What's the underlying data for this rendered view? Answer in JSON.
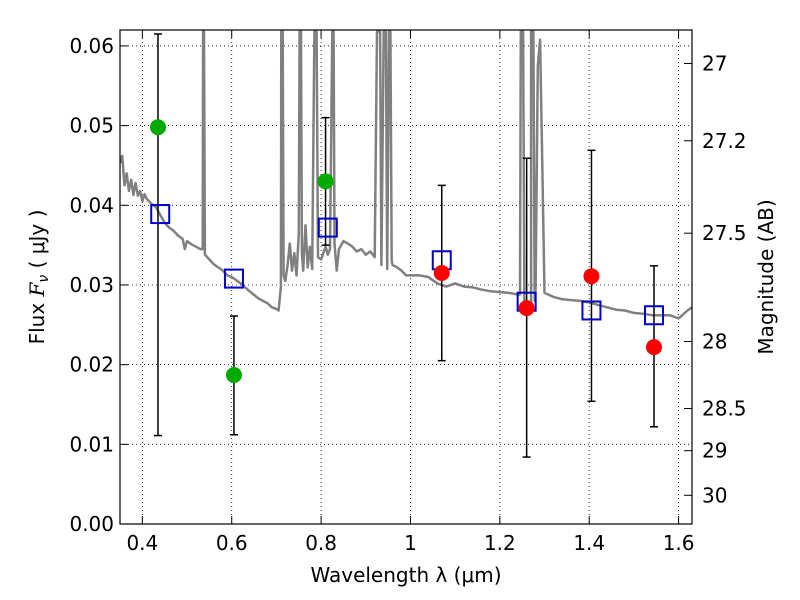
{
  "chart_data": {
    "type": "scatter",
    "xlabel": "Wavelength  λ (μm)",
    "ylabel_parts": {
      "prefix": "Flux  ",
      "var": "F",
      "sub": "ν",
      "unit": "  ( μJy )"
    },
    "y2label": "Magnitude (AB)",
    "xlim": [
      0.35,
      1.63
    ],
    "ylim": [
      0.0,
      0.062
    ],
    "grid": true,
    "x_ticks": [
      0.4,
      0.6,
      0.8,
      1.0,
      1.2,
      1.4,
      1.6
    ],
    "x_tick_labels": [
      "0.4",
      "0.6",
      "0.8",
      "1",
      "1.2",
      "1.4",
      "1.6"
    ],
    "y_ticks": [
      0.0,
      0.01,
      0.02,
      0.03,
      0.04,
      0.05,
      0.06
    ],
    "y_tick_labels": [
      "0.00",
      "0.01",
      "0.02",
      "0.03",
      "0.04",
      "0.05",
      "0.06"
    ],
    "y2_ticks": [
      {
        "label": "27",
        "flux": 0.0578
      },
      {
        "label": "27.2",
        "flux": 0.0481
      },
      {
        "label": "27.5",
        "flux": 0.0365
      },
      {
        "label": "28",
        "flux": 0.0229
      },
      {
        "label": "28.5",
        "flux": 0.0145
      },
      {
        "label": "29",
        "flux": 0.0092
      },
      {
        "label": "30",
        "flux": 0.0036
      }
    ],
    "series": [
      {
        "name": "model spectrum",
        "kind": "line",
        "color": "#808080",
        "points": [
          [
            0.35,
            0.0453
          ],
          [
            0.355,
            0.0462
          ],
          [
            0.36,
            0.0425
          ],
          [
            0.365,
            0.044
          ],
          [
            0.37,
            0.0418
          ],
          [
            0.375,
            0.0432
          ],
          [
            0.38,
            0.0413
          ],
          [
            0.385,
            0.0428
          ],
          [
            0.39,
            0.0412
          ],
          [
            0.395,
            0.0418
          ],
          [
            0.4,
            0.0405
          ],
          [
            0.405,
            0.0414
          ],
          [
            0.41,
            0.0408
          ],
          [
            0.42,
            0.0402
          ],
          [
            0.43,
            0.0398
          ],
          [
            0.44,
            0.0388
          ],
          [
            0.45,
            0.0378
          ],
          [
            0.46,
            0.0372
          ],
          [
            0.47,
            0.0368
          ],
          [
            0.48,
            0.0362
          ],
          [
            0.49,
            0.0358
          ],
          [
            0.495,
            0.0345
          ],
          [
            0.5,
            0.0355
          ],
          [
            0.51,
            0.0351
          ],
          [
            0.52,
            0.0348
          ],
          [
            0.53,
            0.0345
          ],
          [
            0.535,
            0.0345
          ],
          [
            0.536,
            0.0618
          ],
          [
            0.538,
            0.0618
          ],
          [
            0.54,
            0.0338
          ],
          [
            0.55,
            0.0332
          ],
          [
            0.56,
            0.0326
          ],
          [
            0.57,
            0.0322
          ],
          [
            0.58,
            0.0318
          ],
          [
            0.59,
            0.0312
          ],
          [
            0.6,
            0.031
          ],
          [
            0.62,
            0.0302
          ],
          [
            0.64,
            0.0292
          ],
          [
            0.66,
            0.0283
          ],
          [
            0.68,
            0.0277
          ],
          [
            0.69,
            0.0272
          ],
          [
            0.7,
            0.027
          ],
          [
            0.705,
            0.0268
          ],
          [
            0.71,
            0.0298
          ],
          [
            0.711,
            0.0618
          ],
          [
            0.714,
            0.0618
          ],
          [
            0.716,
            0.0312
          ],
          [
            0.72,
            0.0305
          ],
          [
            0.725,
            0.0325
          ],
          [
            0.73,
            0.0352
          ],
          [
            0.735,
            0.0318
          ],
          [
            0.74,
            0.034
          ],
          [
            0.745,
            0.0312
          ],
          [
            0.75,
            0.0365
          ],
          [
            0.752,
            0.0618
          ],
          [
            0.755,
            0.0618
          ],
          [
            0.757,
            0.034
          ],
          [
            0.76,
            0.0318
          ],
          [
            0.765,
            0.0375
          ],
          [
            0.77,
            0.0322
          ],
          [
            0.775,
            0.0348
          ],
          [
            0.78,
            0.032
          ],
          [
            0.785,
            0.0618
          ],
          [
            0.79,
            0.0618
          ],
          [
            0.793,
            0.0335
          ],
          [
            0.8,
            0.0332
          ],
          [
            0.81,
            0.0348
          ],
          [
            0.815,
            0.0338
          ],
          [
            0.82,
            0.0345
          ],
          [
            0.825,
            0.0618
          ],
          [
            0.828,
            0.0618
          ],
          [
            0.83,
            0.0352
          ],
          [
            0.835,
            0.0318
          ],
          [
            0.84,
            0.0345
          ],
          [
            0.85,
            0.0355
          ],
          [
            0.86,
            0.0352
          ],
          [
            0.87,
            0.0348
          ],
          [
            0.88,
            0.0342
          ],
          [
            0.89,
            0.0345
          ],
          [
            0.9,
            0.0338
          ],
          [
            0.91,
            0.0342
          ],
          [
            0.92,
            0.0335
          ],
          [
            0.925,
            0.0618
          ],
          [
            0.928,
            0.0618
          ],
          [
            0.932,
            0.0618
          ],
          [
            0.935,
            0.0325
          ],
          [
            0.94,
            0.0618
          ],
          [
            0.945,
            0.0618
          ],
          [
            0.948,
            0.032
          ],
          [
            0.952,
            0.0618
          ],
          [
            0.955,
            0.0618
          ],
          [
            0.958,
            0.033
          ],
          [
            0.96,
            0.0325
          ],
          [
            0.97,
            0.0322
          ],
          [
            0.98,
            0.0318
          ],
          [
            0.99,
            0.0312
          ],
          [
            1.0,
            0.0312
          ],
          [
            1.02,
            0.0312
          ],
          [
            1.04,
            0.031
          ],
          [
            1.05,
            0.0306
          ],
          [
            1.06,
            0.0302
          ],
          [
            1.08,
            0.0298
          ],
          [
            1.1,
            0.0302
          ],
          [
            1.12,
            0.0298
          ],
          [
            1.14,
            0.0297
          ],
          [
            1.16,
            0.0294
          ],
          [
            1.18,
            0.0292
          ],
          [
            1.2,
            0.0291
          ],
          [
            1.22,
            0.029
          ],
          [
            1.24,
            0.0288
          ],
          [
            1.245,
            0.0288
          ],
          [
            1.247,
            0.0618
          ],
          [
            1.252,
            0.0618
          ],
          [
            1.255,
            0.028
          ],
          [
            1.26,
            0.0275
          ],
          [
            1.27,
            0.0272
          ],
          [
            1.27,
            0.0618
          ],
          [
            1.275,
            0.0618
          ],
          [
            1.278,
            0.028
          ],
          [
            1.28,
            0.0295
          ],
          [
            1.285,
            0.0575
          ],
          [
            1.29,
            0.0608
          ],
          [
            1.295,
            0.045
          ],
          [
            1.3,
            0.029
          ],
          [
            1.32,
            0.0285
          ],
          [
            1.34,
            0.0282
          ],
          [
            1.36,
            0.0281
          ],
          [
            1.38,
            0.028
          ],
          [
            1.4,
            0.0278
          ],
          [
            1.42,
            0.0275
          ],
          [
            1.44,
            0.0272
          ],
          [
            1.46,
            0.0269
          ],
          [
            1.48,
            0.0268
          ],
          [
            1.5,
            0.0265
          ],
          [
            1.52,
            0.0264
          ],
          [
            1.54,
            0.0262
          ],
          [
            1.56,
            0.0262
          ],
          [
            1.58,
            0.0262
          ],
          [
            1.6,
            0.0258
          ],
          [
            1.62,
            0.0268
          ],
          [
            1.63,
            0.0272
          ]
        ]
      },
      {
        "name": "model photometry",
        "kind": "open-square",
        "color": "#0000cc",
        "x": [
          0.44,
          0.605,
          0.815,
          1.07,
          1.26,
          1.405,
          1.545
        ],
        "y": [
          0.0389,
          0.0308,
          0.0372,
          0.0331,
          0.0279,
          0.0268,
          0.0262
        ]
      },
      {
        "name": "observed photometry (green)",
        "kind": "filled-circle",
        "color": "#00aa00",
        "x": [
          0.435,
          0.605,
          0.81
        ],
        "y": [
          0.0498,
          0.0187,
          0.043
        ],
        "err_low": [
          0.0387,
          0.0075,
          0.008
        ],
        "err_high": [
          0.0117,
          0.0074,
          0.008
        ]
      },
      {
        "name": "observed photometry (red)",
        "kind": "filled-circle",
        "color": "#ff0000",
        "x": [
          1.07,
          1.26,
          1.405,
          1.545
        ],
        "y": [
          0.0315,
          0.0271,
          0.0311,
          0.0222
        ],
        "err_low": [
          0.011,
          0.0187,
          0.0157,
          0.01
        ],
        "err_high": [
          0.011,
          0.0188,
          0.0158,
          0.0102
        ]
      }
    ]
  }
}
